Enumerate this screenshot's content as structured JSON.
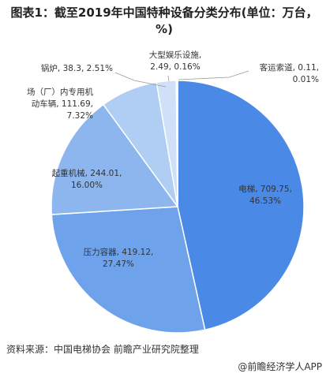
{
  "chart_data": {
    "type": "pie",
    "title": "图表1：截至2019年中国特种设备分类分布(单位：万台，%)",
    "values": [
      709.75,
      419.12,
      244.01,
      111.69,
      38.3,
      2.49,
      0.11
    ],
    "value_labels": [
      [
        "电梯, 709.75,",
        "46.53%"
      ],
      [
        "压力容器, 419.12,",
        "27.47%"
      ],
      [
        "起重机械, 244.01,",
        "16.00%"
      ],
      [
        "场（厂）内专用机",
        "动车辆, 111.69,",
        "7.32%"
      ],
      [
        "锅炉, 38.3, 2.51%"
      ],
      [
        "大型娱乐设施,",
        "2.49, 0.16%"
      ],
      [
        "客运索道, 0.11,",
        "0.01%"
      ]
    ],
    "colors": [
      "#4a89e6",
      "#6ea2ea",
      "#8db6ee",
      "#b0cdf3",
      "#cfe0f8",
      "#e2ecfb",
      "#f3f7fd"
    ],
    "source": "资料来源：中国电梯协会 前瞻产业研究院整理",
    "footer": "@前瞻经济学人APP"
  }
}
